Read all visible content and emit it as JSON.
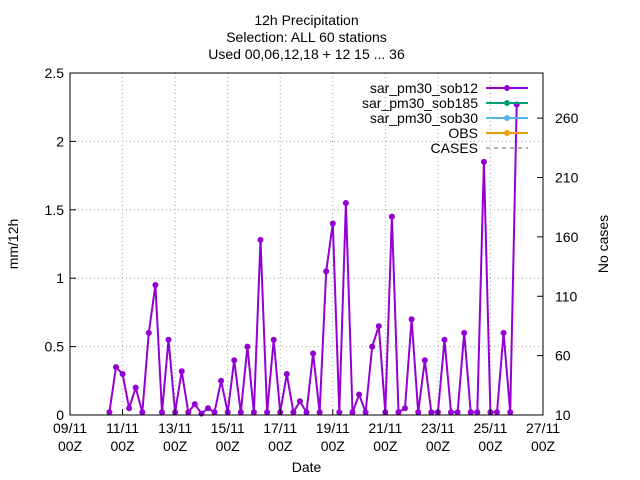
{
  "chart_data": {
    "type": "line",
    "title_lines": [
      "12h Precipitation",
      "Selection: ALL     60 stations",
      "Used 00,06,12,18 + 12 15 ... 36"
    ],
    "xlabel": "Date",
    "ylabel": "mm/12h",
    "y2label": "No cases",
    "x_unit": "days since 09/11 00Z",
    "xlim_days": [
      0,
      18
    ],
    "ylim": [
      0,
      2.5
    ],
    "y2lim": [
      10,
      298
    ],
    "x_ticks": [
      {
        "day": 0,
        "line1": "09/11",
        "line2": "00Z"
      },
      {
        "day": 2,
        "line1": "11/11",
        "line2": "00Z"
      },
      {
        "day": 4,
        "line1": "13/11",
        "line2": "00Z"
      },
      {
        "day": 6,
        "line1": "15/11",
        "line2": "00Z"
      },
      {
        "day": 8,
        "line1": "17/11",
        "line2": "00Z"
      },
      {
        "day": 10,
        "line1": "19/11",
        "line2": "00Z"
      },
      {
        "day": 12,
        "line1": "21/11",
        "line2": "00Z"
      },
      {
        "day": 14,
        "line1": "23/11",
        "line2": "00Z"
      },
      {
        "day": 16,
        "line1": "25/11",
        "line2": "00Z"
      },
      {
        "day": 18,
        "line1": "27/11",
        "line2": "00Z"
      }
    ],
    "y_ticks": [
      "0",
      "0.5",
      "1",
      "1.5",
      "2",
      "2.5"
    ],
    "y2_ticks": [
      "10",
      "60",
      "110",
      "160",
      "210",
      "260"
    ],
    "legend_position": "top-right",
    "grid": true,
    "series": [
      {
        "name": "sar_pm30_sob12",
        "color": "#9400d3",
        "x": [
          1.5,
          1.75,
          2.0,
          2.25,
          2.5,
          2.75,
          3.0,
          3.25,
          3.5,
          3.75,
          4.0,
          4.25,
          4.5,
          4.75,
          5.0,
          5.25,
          5.5,
          5.75,
          6.0,
          6.25,
          6.5,
          6.75,
          7.0,
          7.25,
          7.5,
          7.75,
          8.0,
          8.25,
          8.5,
          8.75,
          9.0,
          9.25,
          9.5,
          9.75,
          10.0,
          10.25,
          10.5,
          10.75,
          11.0,
          11.25,
          11.5,
          11.75,
          12.0,
          12.25,
          12.5,
          12.75,
          13.0,
          13.25,
          13.5,
          13.75,
          14.0,
          14.25,
          14.5,
          14.75,
          15.0,
          15.25,
          15.5,
          15.75,
          16.0,
          16.25,
          16.5,
          16.75,
          17.0
        ],
        "y": [
          0.02,
          0.35,
          0.3,
          0.05,
          0.2,
          0.02,
          0.6,
          0.95,
          0.02,
          0.55,
          0.02,
          0.32,
          0.02,
          0.08,
          0.01,
          0.05,
          0.02,
          0.25,
          0.02,
          0.4,
          0.02,
          0.5,
          0.02,
          1.28,
          0.02,
          0.55,
          0.02,
          0.3,
          0.02,
          0.1,
          0.02,
          0.45,
          0.02,
          1.05,
          1.4,
          0.02,
          1.55,
          0.02,
          0.15,
          0.02,
          0.5,
          0.65,
          0.02,
          1.45,
          0.02,
          0.05,
          0.7,
          0.02,
          0.4,
          0.02,
          0.02,
          0.55,
          0.02,
          0.02,
          0.6,
          0.02,
          0.02,
          1.85,
          0.02,
          0.02,
          0.6,
          0.02,
          2.27
        ]
      }
    ]
  },
  "legend": [
    {
      "label": "sar_pm30_sob12",
      "color": "#9400d3",
      "marker": "circle"
    },
    {
      "label": "sar_pm30_sob185",
      "color": "#009e73",
      "marker": "circle"
    },
    {
      "label": "sar_pm30_sob30",
      "color": "#56b4e9",
      "marker": "circle"
    },
    {
      "label": "OBS",
      "color": "#e69f00",
      "marker": "circle"
    },
    {
      "label": "CASES",
      "color": "#999999",
      "marker": "dash"
    }
  ]
}
